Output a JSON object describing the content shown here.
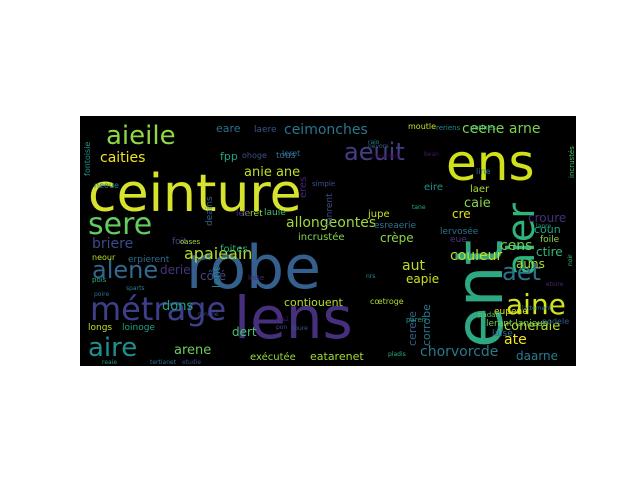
{
  "wordcloud": {
    "background_color": "#000000",
    "words": [
      {
        "text": "ceinture",
        "color": "#d6e22b"
      },
      {
        "text": "robe",
        "color": "#355f8d"
      },
      {
        "text": "lens",
        "color": "#46307d"
      },
      {
        "text": "ent",
        "color": "#2ea883"
      },
      {
        "text": "ens",
        "color": "#d0e11c"
      },
      {
        "text": "métrage",
        "color": "#3d3f8a"
      },
      {
        "text": "aieile",
        "color": "#8fd744"
      },
      {
        "text": "sere",
        "color": "#63cb5f"
      },
      {
        "text": "aeuit",
        "color": "#433e85"
      },
      {
        "text": "aier",
        "color": "#2fb47c"
      },
      {
        "text": "alene",
        "color": "#31688e"
      },
      {
        "text": "aire",
        "color": "#21908d"
      },
      {
        "text": "aine",
        "color": "#d2e21b"
      },
      {
        "text": "aet",
        "color": "#2c738e"
      },
      {
        "text": "caities",
        "color": "#f1e51d"
      },
      {
        "text": "ceimonches",
        "color": "#2a768e"
      },
      {
        "text": "ceene arne",
        "color": "#7ad151"
      },
      {
        "text": "apaieain",
        "color": "#b5de2b"
      },
      {
        "text": "allongeontes",
        "color": "#9fda3a"
      },
      {
        "text": "cens",
        "color": "#6ece58"
      },
      {
        "text": "anie ane",
        "color": "#c2df23"
      },
      {
        "text": "eare",
        "color": "#2e6f8e"
      },
      {
        "text": "laere",
        "color": "#3b528b"
      },
      {
        "text": "fontoisie",
        "color": "#21918c"
      },
      {
        "text": "briere",
        "color": "#3e4989"
      },
      {
        "text": "erpierent",
        "color": "#2d708e"
      },
      {
        "text": "derie",
        "color": "#463480"
      },
      {
        "text": "côté",
        "color": "#3e4a89"
      },
      {
        "text": "dons",
        "color": "#21a685"
      },
      {
        "text": "arene",
        "color": "#6ccd5a"
      },
      {
        "text": "exécutée",
        "color": "#97d83f"
      },
      {
        "text": "eatarenet",
        "color": "#a2da37"
      },
      {
        "text": "chorvorcde",
        "color": "#2a788e"
      },
      {
        "text": "daarne",
        "color": "#287c8e"
      },
      {
        "text": "ate",
        "color": "#f2e51d"
      },
      {
        "text": "coneraie",
        "color": "#b2dd2d"
      },
      {
        "text": "couleur",
        "color": "#c0df25"
      },
      {
        "text": "aut",
        "color": "#bade28"
      },
      {
        "text": "auns",
        "color": "#addc30"
      },
      {
        "text": "caie",
        "color": "#83d34b"
      },
      {
        "text": "cre",
        "color": "#dfe318"
      },
      {
        "text": "crèpe",
        "color": "#8bd646"
      },
      {
        "text": "eapie",
        "color": "#cde11d"
      },
      {
        "text": "croure",
        "color": "#462f7c"
      },
      {
        "text": "coun",
        "color": "#1fa088"
      },
      {
        "text": "ctire",
        "color": "#35b779"
      },
      {
        "text": "cerere",
        "color": "#34608d"
      },
      {
        "text": "corrobe",
        "color": "#2a788e"
      },
      {
        "text": "contiouent",
        "color": "#b8de29"
      },
      {
        "text": "dert",
        "color": "#48c16e"
      },
      {
        "text": "lent",
        "color": "#26828e"
      },
      {
        "text": "incrustée",
        "color": "#81d34d"
      },
      {
        "text": "esreaerie",
        "color": "#2c728e"
      },
      {
        "text": "jupe",
        "color": "#c8e020"
      },
      {
        "text": "eire",
        "color": "#20928c"
      },
      {
        "text": "laer",
        "color": "#b0dd2f"
      },
      {
        "text": "line",
        "color": "#29788e"
      },
      {
        "text": "eres",
        "color": "#482374"
      },
      {
        "text": "tous",
        "color": "#2f6c8e"
      },
      {
        "text": "fanrent",
        "color": "#3c508b"
      },
      {
        "text": "deains",
        "color": "#33638d"
      },
      {
        "text": "foites",
        "color": "#2ab07f"
      },
      {
        "text": "lauie",
        "color": "#44bf70"
      },
      {
        "text": "ieret",
        "color": "#a5db36"
      },
      {
        "text": "leret",
        "color": "#2d718e"
      },
      {
        "text": "ohoge",
        "color": "#3a548c"
      },
      {
        "text": "fpp",
        "color": "#21a585"
      },
      {
        "text": "lee",
        "color": "#46337f"
      },
      {
        "text": "foit",
        "color": "#3f4788"
      },
      {
        "text": "neour",
        "color": "#b2dd2d"
      },
      {
        "text": "neoue",
        "color": "#26828e"
      },
      {
        "text": "moutle",
        "color": "#c8e020"
      },
      {
        "text": "reriens",
        "color": "#238a8d"
      },
      {
        "text": "potines",
        "color": "#3fbc73"
      },
      {
        "text": "incrustés",
        "color": "#4ac16d"
      },
      {
        "text": "eupene",
        "color": "#d8e219"
      },
      {
        "text": "lerant lanieun",
        "color": "#6ece58"
      },
      {
        "text": "laise",
        "color": "#31688e"
      },
      {
        "text": "foile",
        "color": "#90d743"
      },
      {
        "text": "nodele",
        "color": "#365c8d"
      },
      {
        "text": "lervosée",
        "color": "#2d708e"
      },
      {
        "text": "eue",
        "color": "#453781"
      },
      {
        "text": "cœtroge",
        "color": "#addc30"
      },
      {
        "text": "longs",
        "color": "#c2df23"
      },
      {
        "text": "loinoge",
        "color": "#1fa187"
      },
      {
        "text": "pois",
        "color": "#29af7f"
      },
      {
        "text": "poire",
        "color": "#2c728e"
      },
      {
        "text": "reaie",
        "color": "#1e9c89"
      },
      {
        "text": "oases",
        "color": "#9dd93b"
      },
      {
        "text": "simple",
        "color": "#3b528b"
      },
      {
        "text": "tane",
        "color": "#26ad81"
      },
      {
        "text": "bean",
        "color": "#481769"
      },
      {
        "text": "carnment",
        "color": "#46085c"
      },
      {
        "text": "sparts",
        "color": "#25848e"
      },
      {
        "text": "paren",
        "color": "#1f9e89"
      },
      {
        "text": "toure",
        "color": "#38588c"
      },
      {
        "text": "pladis",
        "color": "#2ab07f"
      },
      {
        "text": "padan",
        "color": "#5ec962"
      },
      {
        "text": "tertianet",
        "color": "#2c728e"
      },
      {
        "text": "etudie",
        "color": "#3e4c8a"
      },
      {
        "text": "res2",
        "color": "#481f70"
      },
      {
        "text": "pon",
        "color": "#404588"
      },
      {
        "text": "nrs",
        "color": "#21918c"
      },
      {
        "text": "loise",
        "color": "#472c7a"
      },
      {
        "text": "ronche",
        "color": "#3f4889"
      },
      {
        "text": "lattement",
        "color": "#2d718e"
      },
      {
        "text": "lanre",
        "color": "#20a386"
      },
      {
        "text": "nevore",
        "color": "#34618d"
      },
      {
        "text": "raio",
        "color": "#26828e"
      },
      {
        "text": "noir",
        "color": "#3dbc74"
      },
      {
        "text": "etoire",
        "color": "#482576"
      }
    ]
  }
}
